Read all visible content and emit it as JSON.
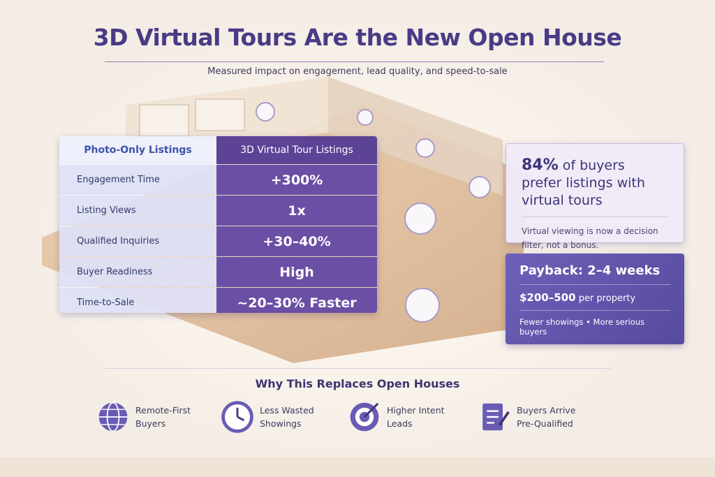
{
  "header": {
    "title": "3D Virtual Tours Are the New Open House",
    "subtitle": "Measured impact on engagement, lead quality, and speed-to-sale"
  },
  "table": {
    "columns": [
      "Photo-Only Listings",
      "3D Virtual Tour Listings"
    ],
    "rows": [
      [
        "Engagement Time",
        "+300%"
      ],
      [
        "Listing Views",
        "1x"
      ],
      [
        "Qualified Inquiries",
        "+30–40%"
      ],
      [
        "Buyer Readiness",
        "High"
      ],
      [
        "Time-to-Sale",
        "~20–30% Faster"
      ]
    ]
  },
  "stat_card": {
    "figure": "84%",
    "text": "of buyers prefer listings with virtual tours",
    "note": "Virtual viewing is now a decision filter, not a bonus."
  },
  "payback_card": {
    "title": "Payback: 2–4 weeks",
    "cost": "$200–500",
    "cost_unit": "per property",
    "footer": "Fewer showings • More serious buyers"
  },
  "reasons": {
    "title": "Why This Replaces Open Houses",
    "items": [
      "Remote-First Buyers",
      "Less Wasted Showings",
      "Higher Intent Leads",
      "Buyers Arrive Pre-Qualified"
    ]
  }
}
